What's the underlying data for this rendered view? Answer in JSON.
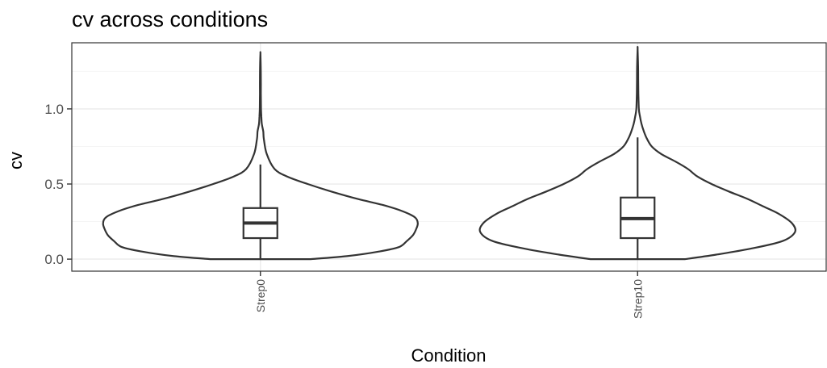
{
  "chart_data": {
    "type": "violin",
    "title": "cv across conditions",
    "xlabel": "Condition",
    "ylabel": "cv",
    "categories": [
      "Strep0",
      "Strep10"
    ],
    "y_ticks": [
      0.0,
      0.5,
      1.0
    ],
    "y_tick_labels": [
      "0.0",
      "0.5",
      "1.0"
    ],
    "ylim": [
      -0.08,
      1.44
    ],
    "grid": true,
    "theme": "bw",
    "colors": {
      "outline": "#333333",
      "grid_major": "#ebebeb",
      "grid_minor": "#f5f5f5",
      "panel_border": "#333333"
    },
    "violins": [
      {
        "category": "Strep0",
        "density": [
          [
            0.0,
            0.32
          ],
          [
            0.02,
            0.55
          ],
          [
            0.05,
            0.75
          ],
          [
            0.08,
            0.88
          ],
          [
            0.12,
            0.93
          ],
          [
            0.16,
            0.97
          ],
          [
            0.2,
            0.99
          ],
          [
            0.24,
            1.0
          ],
          [
            0.28,
            0.98
          ],
          [
            0.32,
            0.9
          ],
          [
            0.36,
            0.78
          ],
          [
            0.4,
            0.62
          ],
          [
            0.45,
            0.45
          ],
          [
            0.5,
            0.3
          ],
          [
            0.55,
            0.17
          ],
          [
            0.6,
            0.09
          ],
          [
            0.7,
            0.04
          ],
          [
            0.8,
            0.022
          ],
          [
            0.85,
            0.018
          ],
          [
            0.9,
            0.009
          ],
          [
            0.95,
            0.006
          ],
          [
            1.0,
            0.004
          ],
          [
            1.1,
            0.003
          ],
          [
            1.2,
            0.003
          ],
          [
            1.3,
            0.002
          ],
          [
            1.37,
            0.0
          ]
        ],
        "box": {
          "q1": 0.14,
          "median": 0.24,
          "q3": 0.34,
          "whisker_low": 0.0,
          "whisker_high": 0.63
        }
      },
      {
        "category": "Strep10",
        "density": [
          [
            0.0,
            0.3
          ],
          [
            0.03,
            0.5
          ],
          [
            0.07,
            0.72
          ],
          [
            0.12,
            0.92
          ],
          [
            0.18,
            1.0
          ],
          [
            0.24,
            0.98
          ],
          [
            0.3,
            0.9
          ],
          [
            0.35,
            0.8
          ],
          [
            0.4,
            0.7
          ],
          [
            0.45,
            0.58
          ],
          [
            0.5,
            0.47
          ],
          [
            0.55,
            0.38
          ],
          [
            0.6,
            0.32
          ],
          [
            0.65,
            0.24
          ],
          [
            0.7,
            0.15
          ],
          [
            0.75,
            0.09
          ],
          [
            0.8,
            0.06
          ],
          [
            0.85,
            0.04
          ],
          [
            0.9,
            0.025
          ],
          [
            0.95,
            0.015
          ],
          [
            1.0,
            0.008
          ],
          [
            1.1,
            0.005
          ],
          [
            1.2,
            0.004
          ],
          [
            1.3,
            0.003
          ],
          [
            1.4,
            0.0
          ]
        ],
        "box": {
          "q1": 0.14,
          "median": 0.27,
          "q3": 0.41,
          "whisker_low": 0.0,
          "whisker_high": 0.81
        }
      }
    ]
  }
}
